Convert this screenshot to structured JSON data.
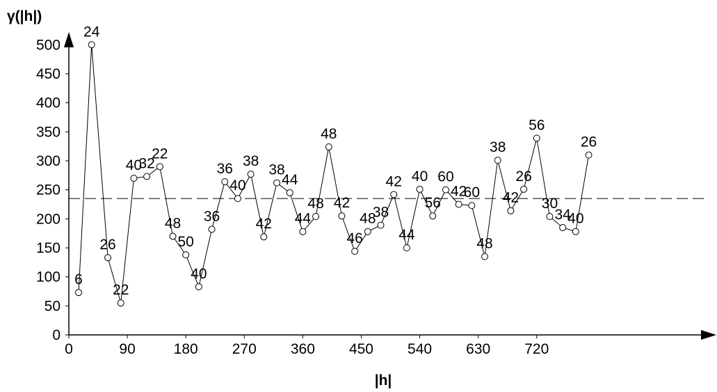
{
  "chart_data": {
    "type": "line",
    "title": "",
    "xlabel": "|h|",
    "ylabel": "γ(|h|)",
    "xlim": [
      0,
      810
    ],
    "ylim": [
      0,
      510
    ],
    "x_ticks": [
      0,
      90,
      180,
      270,
      360,
      450,
      540,
      630,
      720
    ],
    "y_ticks": [
      0,
      50,
      100,
      150,
      200,
      250,
      300,
      350,
      400,
      450,
      500
    ],
    "grid": false,
    "sill_line": {
      "y": 235,
      "style": "dashed"
    },
    "series": [
      {
        "marker": "open-circle",
        "points": [
          {
            "x": 15,
            "y": 73,
            "label": "6"
          },
          {
            "x": 35,
            "y": 500,
            "label": "24"
          },
          {
            "x": 60,
            "y": 133,
            "label": "26"
          },
          {
            "x": 80,
            "y": 55,
            "label": "22"
          },
          {
            "x": 100,
            "y": 270,
            "label": "40"
          },
          {
            "x": 120,
            "y": 273,
            "label": "32"
          },
          {
            "x": 140,
            "y": 290,
            "label": "22"
          },
          {
            "x": 160,
            "y": 170,
            "label": "48"
          },
          {
            "x": 180,
            "y": 138,
            "label": "50"
          },
          {
            "x": 200,
            "y": 83,
            "label": "40"
          },
          {
            "x": 220,
            "y": 182,
            "label": "36"
          },
          {
            "x": 240,
            "y": 264,
            "label": "36"
          },
          {
            "x": 260,
            "y": 235,
            "label": "40"
          },
          {
            "x": 280,
            "y": 277,
            "label": "38"
          },
          {
            "x": 300,
            "y": 169,
            "label": "42"
          },
          {
            "x": 320,
            "y": 262,
            "label": "38"
          },
          {
            "x": 340,
            "y": 245,
            "label": "44"
          },
          {
            "x": 360,
            "y": 178,
            "label": "44"
          },
          {
            "x": 380,
            "y": 204,
            "label": "48"
          },
          {
            "x": 400,
            "y": 324,
            "label": "48"
          },
          {
            "x": 420,
            "y": 205,
            "label": "42"
          },
          {
            "x": 440,
            "y": 144,
            "label": "46"
          },
          {
            "x": 460,
            "y": 178,
            "label": "48"
          },
          {
            "x": 480,
            "y": 189,
            "label": "38"
          },
          {
            "x": 500,
            "y": 242,
            "label": "42"
          },
          {
            "x": 520,
            "y": 150,
            "label": "44"
          },
          {
            "x": 540,
            "y": 251,
            "label": "40"
          },
          {
            "x": 560,
            "y": 205,
            "label": "56"
          },
          {
            "x": 580,
            "y": 250,
            "label": "60"
          },
          {
            "x": 600,
            "y": 225,
            "label": "42"
          },
          {
            "x": 620,
            "y": 223,
            "label": "60"
          },
          {
            "x": 640,
            "y": 135,
            "label": "48"
          },
          {
            "x": 660,
            "y": 301,
            "label": "38"
          },
          {
            "x": 680,
            "y": 214,
            "label": "42"
          },
          {
            "x": 700,
            "y": 251,
            "label": "26"
          },
          {
            "x": 720,
            "y": 339,
            "label": "56"
          },
          {
            "x": 740,
            "y": 204,
            "label": "30"
          },
          {
            "x": 760,
            "y": 185,
            "label": "34"
          },
          {
            "x": 780,
            "y": 178,
            "label": "40"
          },
          {
            "x": 800,
            "y": 310,
            "label": "26"
          }
        ]
      }
    ]
  }
}
